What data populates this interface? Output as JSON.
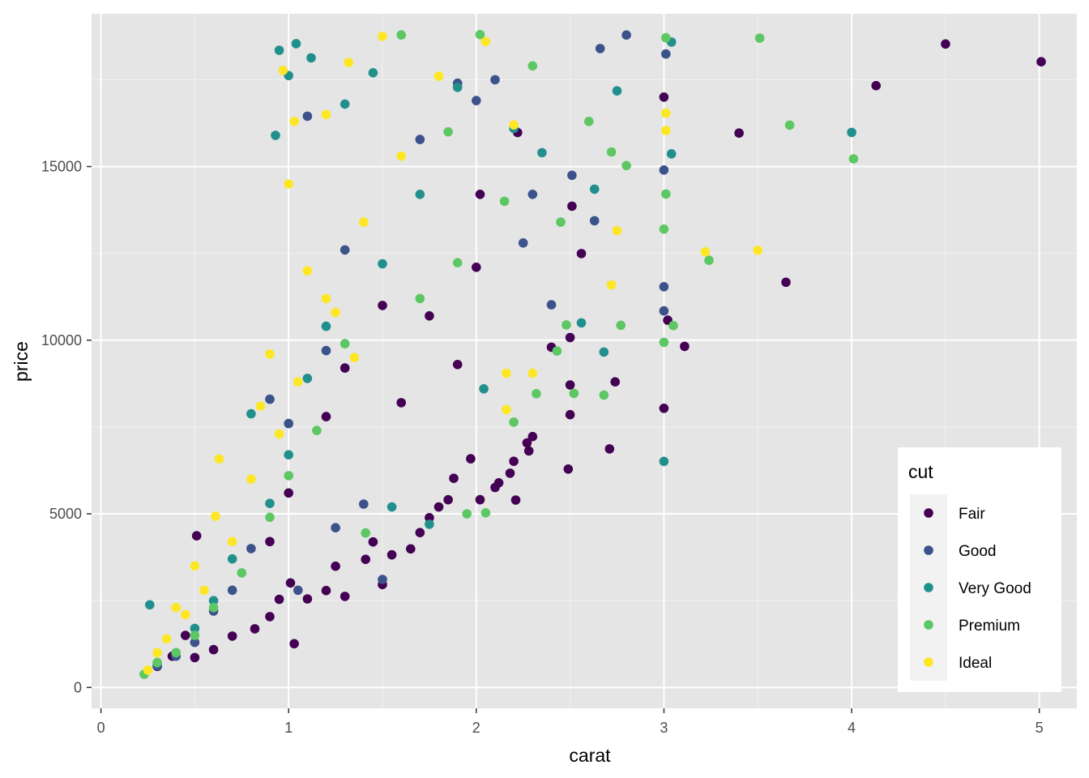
{
  "chart_data": {
    "type": "scatter",
    "title": "",
    "xlabel": "carat",
    "ylabel": "price",
    "xlim": [
      -0.05,
      5.2
    ],
    "ylim": [
      -600,
      19400
    ],
    "x_ticks": [
      0,
      1,
      2,
      3,
      4,
      5
    ],
    "x_tick_labels": [
      "0",
      "1",
      "2",
      "3",
      "4",
      "5"
    ],
    "y_ticks": [
      0,
      5000,
      10000,
      15000
    ],
    "y_tick_labels": [
      "0",
      "5000",
      "10000",
      "15000"
    ],
    "grid": true,
    "background": "#e5e5e5",
    "legend": {
      "title": "cut",
      "placement": "bottom-right-inside"
    },
    "series": [
      {
        "name": "Fair",
        "color": "#440154",
        "points": [
          [
            4.5,
            18530
          ],
          [
            5.01,
            18018
          ],
          [
            4.13,
            17329
          ],
          [
            3.4,
            15964
          ],
          [
            3.65,
            11668
          ],
          [
            3.11,
            9823
          ],
          [
            3.02,
            10577
          ],
          [
            3.0,
            17000
          ],
          [
            3.0,
            8040
          ],
          [
            2.74,
            8800
          ],
          [
            2.71,
            6870
          ],
          [
            2.5,
            10076
          ],
          [
            2.5,
            8711
          ],
          [
            2.5,
            7854
          ],
          [
            2.49,
            6289
          ],
          [
            2.51,
            13860
          ],
          [
            2.56,
            12495
          ],
          [
            2.3,
            7226
          ],
          [
            2.27,
            7042
          ],
          [
            2.2,
            6513
          ],
          [
            2.18,
            6170
          ],
          [
            2.12,
            5892
          ],
          [
            2.02,
            5408
          ],
          [
            2.28,
            6812
          ],
          [
            1.97,
            6585
          ],
          [
            1.88,
            6024
          ],
          [
            2.21,
            5398
          ],
          [
            2.1,
            5760
          ],
          [
            1.85,
            5404
          ],
          [
            1.8,
            5200
          ],
          [
            1.75,
            4890
          ],
          [
            1.7,
            4460
          ],
          [
            1.65,
            3990
          ],
          [
            1.55,
            3820
          ],
          [
            1.5,
            2964
          ],
          [
            1.45,
            4190
          ],
          [
            1.41,
            3690
          ],
          [
            1.3,
            2624
          ],
          [
            1.25,
            3490
          ],
          [
            1.2,
            2790
          ],
          [
            1.1,
            2550
          ],
          [
            1.03,
            1261
          ],
          [
            1.01,
            3010
          ],
          [
            0.95,
            2540
          ],
          [
            0.9,
            2040
          ],
          [
            0.82,
            1690
          ],
          [
            0.7,
            1480
          ],
          [
            0.6,
            1090
          ],
          [
            0.5,
            860
          ],
          [
            0.51,
            4368
          ],
          [
            0.38,
            900
          ],
          [
            0.3,
            606
          ],
          [
            0.45,
            1500
          ],
          [
            2.4,
            9800
          ],
          [
            2.0,
            12100
          ],
          [
            1.5,
            11000
          ],
          [
            1.3,
            9200
          ],
          [
            1.2,
            7800
          ],
          [
            1.0,
            5600
          ],
          [
            0.9,
            4200
          ],
          [
            1.6,
            8200
          ],
          [
            2.02,
            14200
          ],
          [
            2.22,
            15980
          ],
          [
            1.9,
            9300
          ],
          [
            1.75,
            10700
          ]
        ]
      },
      {
        "name": "Good",
        "color": "#3b528b",
        "points": [
          [
            2.8,
            18788
          ],
          [
            3.01,
            18242
          ],
          [
            2.66,
            18400
          ],
          [
            3.0,
            14900
          ],
          [
            3.0,
            11540
          ],
          [
            3.0,
            10845
          ],
          [
            2.63,
            13440
          ],
          [
            2.51,
            14750
          ],
          [
            2.4,
            11020
          ],
          [
            1.9,
            17400
          ],
          [
            1.1,
            16450
          ],
          [
            1.5,
            3110
          ],
          [
            1.4,
            5280
          ],
          [
            2.3,
            14200
          ],
          [
            2.1,
            17500
          ],
          [
            1.7,
            15780
          ],
          [
            1.3,
            12600
          ],
          [
            1.2,
            9700
          ],
          [
            1.0,
            7600
          ],
          [
            0.9,
            8300
          ],
          [
            0.8,
            4000
          ],
          [
            0.7,
            2800
          ],
          [
            0.6,
            2200
          ],
          [
            0.5,
            1300
          ],
          [
            0.4,
            900
          ],
          [
            0.3,
            620
          ],
          [
            1.05,
            2800
          ],
          [
            1.25,
            4600
          ],
          [
            2.0,
            16900
          ],
          [
            2.25,
            12800
          ]
        ]
      },
      {
        "name": "Very Good",
        "color": "#21908d",
        "points": [
          [
            4.0,
            15984
          ],
          [
            3.04,
            15368
          ],
          [
            3.0,
            6512
          ],
          [
            3.04,
            18585
          ],
          [
            2.75,
            17180
          ],
          [
            2.68,
            9660
          ],
          [
            2.63,
            14350
          ],
          [
            2.56,
            10500
          ],
          [
            1.04,
            18540
          ],
          [
            1.12,
            18130
          ],
          [
            0.93,
            15900
          ],
          [
            1.0,
            17620
          ],
          [
            1.45,
            17700
          ],
          [
            1.9,
            17280
          ],
          [
            0.8,
            7880
          ],
          [
            0.9,
            5300
          ],
          [
            0.26,
            2380
          ],
          [
            0.95,
            18350
          ],
          [
            1.3,
            16800
          ],
          [
            2.2,
            16100
          ],
          [
            2.35,
            15400
          ],
          [
            1.7,
            14200
          ],
          [
            1.5,
            12200
          ],
          [
            1.2,
            10400
          ],
          [
            1.1,
            8900
          ],
          [
            1.0,
            6700
          ],
          [
            0.7,
            3700
          ],
          [
            0.6,
            2500
          ],
          [
            0.5,
            1700
          ],
          [
            0.4,
            1000
          ],
          [
            0.3,
            700
          ],
          [
            1.75,
            4700
          ],
          [
            2.04,
            8600
          ],
          [
            1.55,
            5200
          ]
        ]
      },
      {
        "name": "Premium",
        "color": "#5dc863",
        "points": [
          [
            3.51,
            18701
          ],
          [
            3.01,
            18710
          ],
          [
            3.67,
            16193
          ],
          [
            4.01,
            15223
          ],
          [
            2.8,
            15030
          ],
          [
            2.72,
            15420
          ],
          [
            3.24,
            12300
          ],
          [
            3.0,
            13200
          ],
          [
            3.01,
            14210
          ],
          [
            3.0,
            9940
          ],
          [
            2.77,
            10430
          ],
          [
            3.05,
            10420
          ],
          [
            2.43,
            9690
          ],
          [
            2.48,
            10440
          ],
          [
            2.52,
            8470
          ],
          [
            2.68,
            8420
          ],
          [
            2.32,
            8460
          ],
          [
            2.2,
            7640
          ],
          [
            1.95,
            5000
          ],
          [
            2.05,
            5030
          ],
          [
            1.41,
            4450
          ],
          [
            1.9,
            12230
          ],
          [
            1.6,
            18790
          ],
          [
            2.02,
            18800
          ],
          [
            2.15,
            14000
          ],
          [
            1.7,
            11200
          ],
          [
            1.3,
            9900
          ],
          [
            1.15,
            7400
          ],
          [
            1.0,
            6100
          ],
          [
            0.9,
            4900
          ],
          [
            0.75,
            3300
          ],
          [
            0.6,
            2300
          ],
          [
            0.5,
            1500
          ],
          [
            0.4,
            1000
          ],
          [
            0.3,
            720
          ],
          [
            0.23,
            380
          ],
          [
            2.6,
            16300
          ],
          [
            2.45,
            13400
          ],
          [
            1.85,
            16000
          ],
          [
            2.3,
            17900
          ]
        ]
      },
      {
        "name": "Ideal",
        "color": "#fde725",
        "points": [
          [
            3.5,
            12587
          ],
          [
            3.22,
            12545
          ],
          [
            3.01,
            16538
          ],
          [
            3.01,
            16037
          ],
          [
            2.75,
            13156
          ],
          [
            2.72,
            11594
          ],
          [
            2.3,
            9050
          ],
          [
            2.16,
            9050
          ],
          [
            2.16,
            8000
          ],
          [
            1.32,
            18000
          ],
          [
            1.5,
            18750
          ],
          [
            1.2,
            16500
          ],
          [
            1.03,
            16300
          ],
          [
            0.97,
            17770
          ],
          [
            0.9,
            9600
          ],
          [
            0.85,
            8100
          ],
          [
            0.63,
            6580
          ],
          [
            0.61,
            4930
          ],
          [
            0.5,
            3500
          ],
          [
            0.4,
            2300
          ],
          [
            0.3,
            1000
          ],
          [
            0.25,
            500
          ],
          [
            1.0,
            14500
          ],
          [
            1.1,
            12000
          ],
          [
            1.25,
            10800
          ],
          [
            1.4,
            13400
          ],
          [
            1.6,
            15300
          ],
          [
            1.8,
            17600
          ],
          [
            2.05,
            18600
          ],
          [
            2.2,
            16200
          ],
          [
            0.7,
            4200
          ],
          [
            0.8,
            6000
          ],
          [
            0.95,
            7300
          ],
          [
            1.05,
            8800
          ],
          [
            1.2,
            11200
          ],
          [
            1.35,
            9500
          ],
          [
            0.45,
            2100
          ],
          [
            0.55,
            2800
          ],
          [
            0.35,
            1400
          ]
        ]
      }
    ]
  }
}
